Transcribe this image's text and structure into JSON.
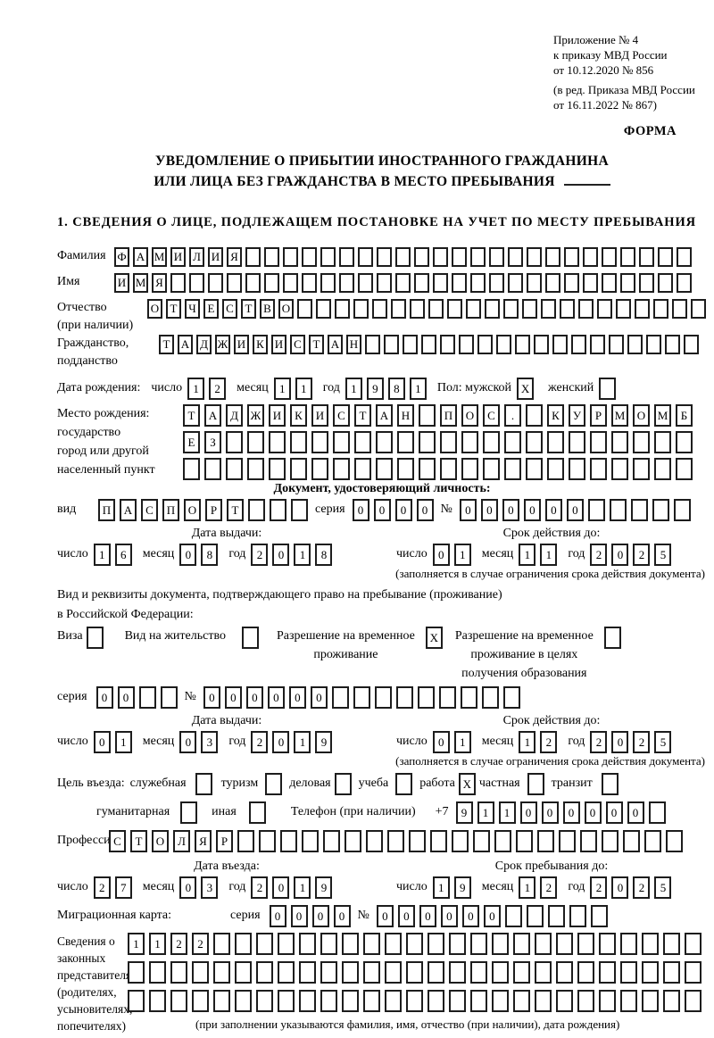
{
  "date_labels": {
    "day": "число",
    "month": "месяц",
    "year": "год"
  },
  "header": {
    "appendix": [
      "Приложение № 4",
      "к приказу МВД России",
      "от 10.12.2020 № 856"
    ],
    "revision": [
      "(в ред. Приказа МВД России",
      "от 16.11.2022 № 867)"
    ],
    "forma": "ФОРМА"
  },
  "title": {
    "line1": "УВЕДОМЛЕНИЕ О ПРИБЫТИИ ИНОСТРАННОГО ГРАЖДАНИНА",
    "line2": "ИЛИ ЛИЦА БЕЗ ГРАЖДАНСТВА В МЕСТО ПРЕБЫВАНИЯ"
  },
  "section1_heading": "1. СВЕДЕНИЯ О ЛИЦЕ, ПОДЛЕЖАЩЕМ ПОСТАНОВКЕ НА УЧЕТ ПО МЕСТУ ПРЕБЫВАНИЯ",
  "person": {
    "surname": {
      "label": "Фамилия",
      "value": "ФАМИЛИЯ",
      "count": 31
    },
    "firstname": {
      "label": "Имя",
      "value": "ИМЯ",
      "count": 31
    },
    "patronymic": {
      "label": "Отчество",
      "label2": "(при наличии)",
      "value": "ОТЧЕСТВО",
      "count": 30
    },
    "citizenship": {
      "label": "Гражданство,",
      "label2": "подданство",
      "value": "ТАДЖИКИСТАН",
      "count": 29
    },
    "birthdate": {
      "label": "Дата рождения:",
      "day": "12",
      "month": "11",
      "year": "1981",
      "sex_label": "Пол: мужской",
      "male": {
        "value": "X",
        "count": 1
      },
      "female_label": "женский",
      "female": {
        "value": "",
        "count": 1
      }
    },
    "birthplace": {
      "labels": [
        "Место рождения:",
        "государство",
        "город или другой",
        "населенный пункт"
      ],
      "row1": {
        "value": "ТАДЖИКИСТАН ПОС. КУРМОМБ",
        "count": 24
      },
      "row2": {
        "value": "ЕЗ",
        "count": 24
      },
      "row3": {
        "value": "",
        "count": 24
      }
    }
  },
  "identity_doc": {
    "heading": "Документ, удостоверяющий личность:",
    "kind_label": "вид",
    "kind": {
      "value": "ПАСПОРТ",
      "count": 10
    },
    "series_label": "серия",
    "series": {
      "value": "0000",
      "count": 4
    },
    "number_label": "№",
    "number": {
      "value": "000000",
      "count": 11
    },
    "issue_title": "Дата выдачи:",
    "issue": {
      "day": "16",
      "month": "08",
      "year": "2018"
    },
    "expiry_title": "Срок действия до:",
    "expiry": {
      "day": "01",
      "month": "11",
      "year": "2025"
    },
    "note": "(заполняется в случае ограничения срока действия документа)"
  },
  "residence_doc": {
    "intro1": "Вид и реквизиты документа, подтверждающего право на пребывание (проживание)",
    "intro2": "в Российской Федерации:",
    "visa_label": "Виза",
    "visa": {
      "value": "",
      "count": 1
    },
    "residence_permit_label": "Вид на жительство",
    "residence_permit": {
      "value": "",
      "count": 1
    },
    "temp_permit_label1": "Разрешение на временное",
    "temp_permit_label2": "проживание",
    "temp_permit": {
      "value": "X",
      "count": 1
    },
    "edu_permit_label1": "Разрешение на временное",
    "edu_permit_label2": "проживание в целях",
    "edu_permit_label3": "получения образования",
    "edu_permit": {
      "value": "",
      "count": 1
    },
    "series_label": "серия",
    "series": {
      "value": "00",
      "count": 4
    },
    "number_label": "№",
    "number": {
      "value": "000000",
      "count": 15
    },
    "issue_title": "Дата выдачи:",
    "issue": {
      "day": "01",
      "month": "03",
      "year": "2019"
    },
    "expiry_title": "Срок действия до:",
    "expiry": {
      "day": "01",
      "month": "12",
      "year": "2025"
    },
    "note": "(заполняется в случае ограничения срока действия документа)"
  },
  "visit": {
    "purpose_label": "Цель въезда:",
    "options": [
      {
        "label": "служебная",
        "value": "",
        "count": 1
      },
      {
        "label": "туризм",
        "value": "",
        "count": 1
      },
      {
        "label": "деловая",
        "value": "",
        "count": 1
      },
      {
        "label": "учеба",
        "value": "",
        "count": 1
      },
      {
        "label": "работа",
        "value": "X",
        "count": 1
      },
      {
        "label": "частная",
        "value": "",
        "count": 1
      },
      {
        "label": "транзит",
        "value": "",
        "count": 1
      }
    ],
    "options2": [
      {
        "label": "гуманитарная",
        "value": "",
        "count": 1
      },
      {
        "label": "иная",
        "value": "",
        "count": 1
      }
    ],
    "phone_label": "Телефон (при наличии)",
    "phone_prefix": "+7",
    "phone": {
      "value": "911000000",
      "count": 10
    },
    "profession_label": "Профессия",
    "profession": {
      "value": "СТОЛЯР",
      "count": 27
    },
    "entry_title": "Дата въезда:",
    "entry": {
      "day": "27",
      "month": "03",
      "year": "2019"
    },
    "stay_title": "Срок пребывания до:",
    "stay": {
      "day": "19",
      "month": "12",
      "year": "2025"
    }
  },
  "migration_card": {
    "label": "Миграционная карта:",
    "series_label": "серия",
    "series": {
      "value": "0000",
      "count": 4
    },
    "number_label": "№",
    "number": {
      "value": "000000",
      "count": 11
    }
  },
  "representatives": {
    "labels": [
      "Сведения о",
      "законных",
      "представителях",
      "(родителях,",
      "усыновителях,",
      "попечителях)"
    ],
    "row1": {
      "value": "1122",
      "count": 27
    },
    "row2": {
      "value": "",
      "count": 27
    },
    "row3": {
      "value": "",
      "count": 27
    },
    "note": "(при заполнении указываются фамилия, имя, отчество (при наличии), дата рождения)"
  }
}
